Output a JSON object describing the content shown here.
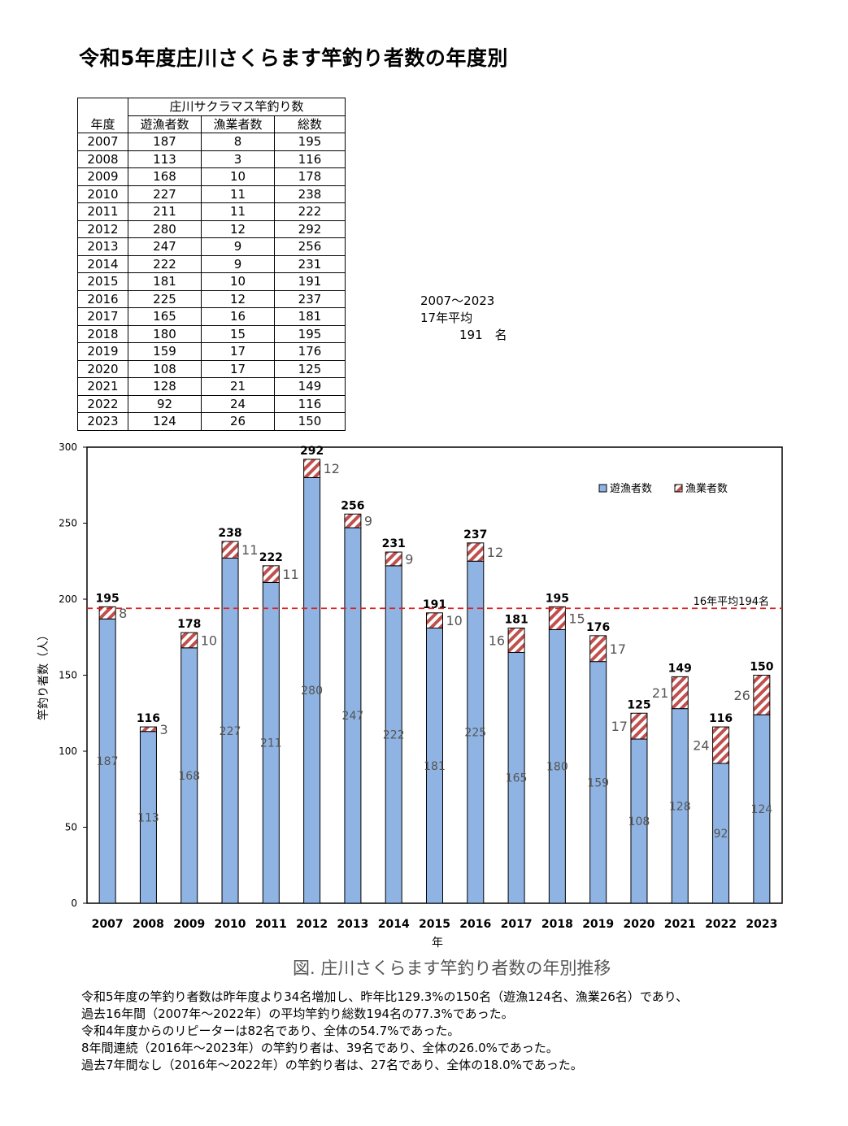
{
  "title": "令和5年度庄川さくらます竿釣り者数の年度別",
  "table": {
    "group_header": "庄川サクラマス竿釣り数",
    "columns": [
      "年度",
      "遊漁者数",
      "漁業者数",
      "総数"
    ],
    "rows": [
      [
        "2007",
        "187",
        "8",
        "195"
      ],
      [
        "2008",
        "113",
        "3",
        "116"
      ],
      [
        "2009",
        "168",
        "10",
        "178"
      ],
      [
        "2010",
        "227",
        "11",
        "238"
      ],
      [
        "2011",
        "211",
        "11",
        "222"
      ],
      [
        "2012",
        "280",
        "12",
        "292"
      ],
      [
        "2013",
        "247",
        "9",
        "256"
      ],
      [
        "2014",
        "222",
        "9",
        "231"
      ],
      [
        "2015",
        "181",
        "10",
        "191"
      ],
      [
        "2016",
        "225",
        "12",
        "237"
      ],
      [
        "2017",
        "165",
        "16",
        "181"
      ],
      [
        "2018",
        "180",
        "15",
        "195"
      ],
      [
        "2019",
        "159",
        "17",
        "176"
      ],
      [
        "2020",
        "108",
        "17",
        "125"
      ],
      [
        "2021",
        "128",
        "21",
        "149"
      ],
      [
        "2022",
        "92",
        "24",
        "116"
      ],
      [
        "2023",
        "124",
        "26",
        "150"
      ]
    ]
  },
  "average_note": {
    "period": "2007～2023",
    "label": "17年平均",
    "value": "191　名"
  },
  "chart_data": {
    "type": "bar",
    "stacked": true,
    "categories": [
      "2007",
      "2008",
      "2009",
      "2010",
      "2011",
      "2012",
      "2013",
      "2014",
      "2015",
      "2016",
      "2017",
      "2018",
      "2019",
      "2020",
      "2021",
      "2022",
      "2023"
    ],
    "series": [
      {
        "name": "遊漁者数",
        "values": [
          187,
          113,
          168,
          227,
          211,
          280,
          247,
          222,
          181,
          225,
          165,
          180,
          159,
          108,
          128,
          92,
          124
        ],
        "color": "#8fb4e3",
        "pattern": "solid"
      },
      {
        "name": "漁業者数",
        "values": [
          8,
          3,
          10,
          11,
          11,
          12,
          9,
          9,
          10,
          12,
          16,
          15,
          17,
          17,
          21,
          24,
          26
        ],
        "color": "#c0504d",
        "pattern": "diagonal-stripes"
      }
    ],
    "totals": [
      195,
      116,
      178,
      238,
      222,
      292,
      256,
      231,
      191,
      237,
      181,
      195,
      176,
      125,
      149,
      116,
      150
    ],
    "xlabel": "年",
    "ylabel": "竿釣り者数（人）",
    "ylim": [
      0,
      300
    ],
    "yticks": [
      0,
      50,
      100,
      150,
      200,
      250,
      300
    ],
    "reference_line": {
      "value": 194,
      "label": "16年平均194名",
      "color": "#e02020",
      "style": "dashed"
    },
    "legend_position": "top-right",
    "grid": false
  },
  "caption": "図. 庄川さくらます竿釣り者数の年別推移",
  "summary": [
    "令和5年度の竿釣り者数は昨年度より34名増加し、昨年比129.3%の150名（遊漁124名、漁業26名）であり、",
    "過去16年間（2007年～2022年）の平均竿釣り総数194名の77.3%であった。",
    "令和4年度からのリピーターは82名であり、全体の54.7%であった。",
    " 8年間連続（2016年～2023年）の竿釣り者は、39名であり、全体の26.0%であった。",
    "過去7年間なし（2016年～2022年）の竿釣り者は、27名であり、全体の18.0%であった。"
  ]
}
